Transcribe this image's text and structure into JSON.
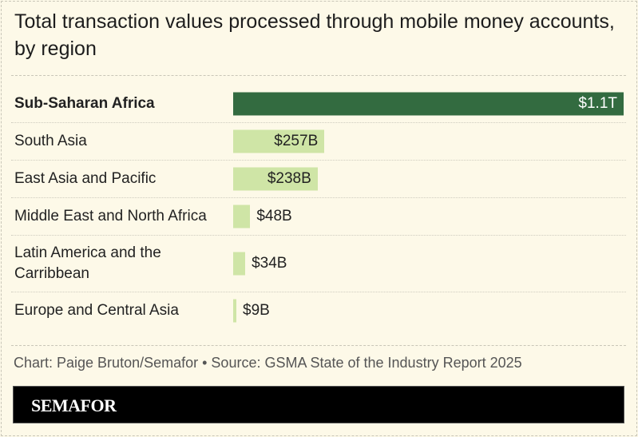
{
  "title": "Total transaction values processed through mobile money accounts, by region",
  "chart_data": {
    "type": "bar",
    "orientation": "horizontal",
    "title": "Total transaction values processed through mobile money accounts, by region",
    "categories": [
      "Sub-Saharan Africa",
      "South Asia",
      "East Asia and Pacific",
      "Middle East and North Africa",
      "Latin America and the Carribbean",
      "Europe and Central Asia"
    ],
    "values": [
      1100,
      257,
      238,
      48,
      34,
      9
    ],
    "unit": "billion USD",
    "data_labels": [
      "$1.1T",
      "$257B",
      "$238B",
      "$48B",
      "$34B",
      "$9B"
    ],
    "highlight": "Sub-Saharan Africa",
    "grid": false,
    "colors": {
      "highlight": "#336b40",
      "default": "#cfe5a6"
    }
  },
  "source": "Chart: Paige Bruton/Semafor • Source: GSMA State of the Industry Report 2025",
  "brand": "SEMAFOR"
}
